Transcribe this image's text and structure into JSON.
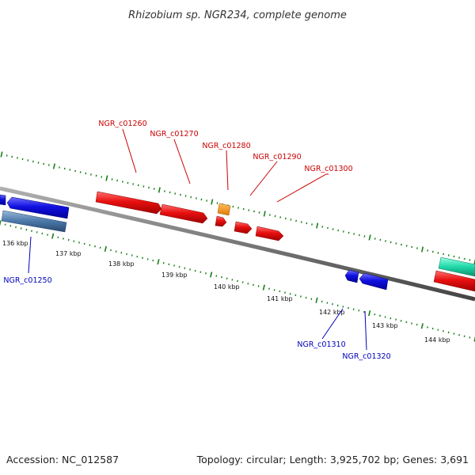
{
  "title": "Rhizobium sp. NGR234, complete genome",
  "footer": {
    "accession": "Accession: NC_012587",
    "summary": "Topology: circular; Length: 3,925,702 bp; Genes: 3,691"
  },
  "colors": {
    "backbone": "#7f7f7f",
    "tick": "#1a7f1a",
    "forward_gene": "#e01010",
    "reverse_gene": "#1414d8",
    "forward_label": "#cc0000",
    "reverse_label": "#0000bb",
    "rna": "#f08c00",
    "pseudo": "#4a78a8",
    "other": "#20d0a0"
  },
  "kbp_ticks": [
    "136 kbp",
    "137 kbp",
    "138 kbp",
    "139 kbp",
    "140 kbp",
    "141 kbp",
    "142 kbp",
    "143 kbp",
    "144 kbp"
  ],
  "forward_genes": [
    "NGR_c01260",
    "NGR_c01270",
    "NGR_c01280",
    "NGR_c01290",
    "NGR_c01300"
  ],
  "reverse_genes": [
    "NGR_c01250",
    "NGR_c01310",
    "NGR_c01320"
  ]
}
